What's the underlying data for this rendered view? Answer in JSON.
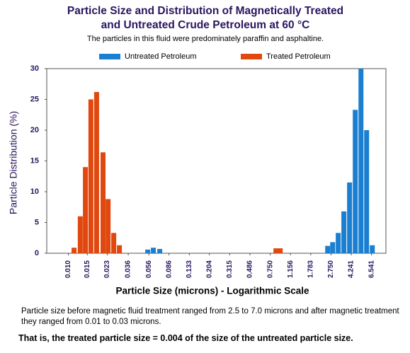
{
  "chart_data": {
    "type": "bar",
    "title": [
      "Particle Size and Distribution of Magnetically Treated",
      "and Untreated Crude Petroleum at 60 °C"
    ],
    "subtitle": "The particles in this fluid were predominately paraffin and asphaltine.",
    "x_label": "Particle Size (microns)  -  Logarithmic Scale",
    "y_label": "Particle Distribution (%)",
    "x_scale": "log",
    "xlim": [
      0.0063,
      8.9
    ],
    "xticks": [
      {
        "value": 0.01,
        "label": "0.010"
      },
      0.015,
      0.023,
      0.036,
      0.056,
      0.086,
      0.133,
      0.204,
      0.315,
      0.486,
      {
        "value": 0.75,
        "label": "0.750"
      },
      1.156,
      1.783,
      {
        "value": 2.75,
        "label": "2.750"
      },
      4.241,
      6.541
    ],
    "ylim": [
      0,
      30
    ],
    "yticks": [
      0,
      5,
      10,
      15,
      20,
      25,
      30
    ],
    "legend": "top",
    "series": [
      {
        "name": "Untreated Petroleum",
        "color": "#1a7fd0",
        "x": [
          0.0546,
          0.0616,
          0.0706,
          2.56,
          2.85,
          3.21,
          3.62,
          4.09,
          4.62,
          5.22,
          5.89,
          6.65
        ],
        "values": [
          0.6,
          0.9,
          0.7,
          1.2,
          1.8,
          3.3,
          6.8,
          11.5,
          23.3,
          30,
          20,
          1.3
        ]
      },
      {
        "name": "Treated Petroleum",
        "color": "#e0480f",
        "x": [
          0.0113,
          0.0129,
          0.0144,
          0.0162,
          0.0183,
          0.021,
          0.0234,
          0.0264,
          0.0298,
          0.847,
          0.928
        ],
        "values": [
          0.9,
          6,
          14,
          25,
          26.2,
          16.4,
          8.8,
          3.3,
          1.3,
          0.8,
          0.8
        ]
      }
    ],
    "notes": [
      "Particle size before magnetic fluid treatment ranged from 2.5 to 7.0 microns and after magnetic treatment they ranged from 0.01 to 0.03 microns.",
      "That is, the treated particle size  =  0.004 of the size of the untreated particle size."
    ]
  }
}
